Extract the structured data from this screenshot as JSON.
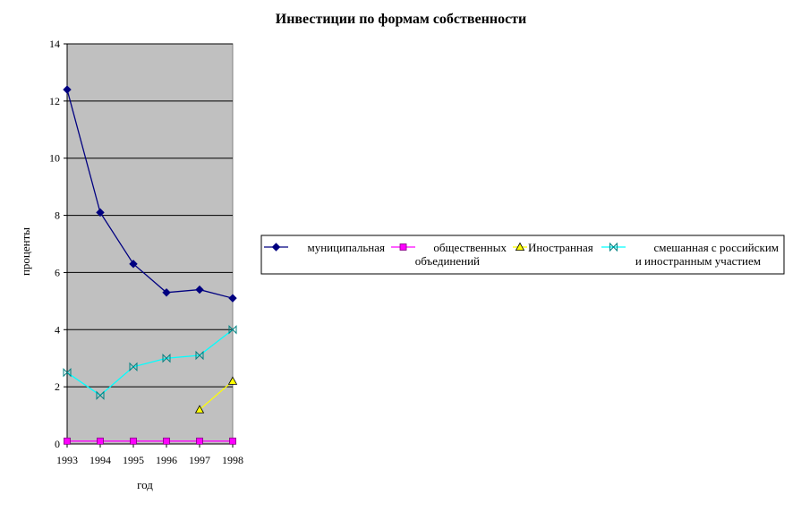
{
  "chart_data": {
    "type": "line",
    "title": "Инвестиции по формам собственности",
    "xlabel": "год",
    "ylabel": "проценты",
    "x": [
      "1993",
      "1994",
      "1995",
      "1996",
      "1997",
      "1998"
    ],
    "ylim": [
      0,
      14
    ],
    "yticks": [
      "0",
      "2",
      "4",
      "6",
      "8",
      "10",
      "12",
      "14"
    ],
    "grid": true,
    "legend_position": "right",
    "series": [
      {
        "name": "муниципальная",
        "color": "#000080",
        "marker": "diamond",
        "values": [
          12.4,
          8.1,
          6.3,
          5.3,
          5.4,
          5.1
        ]
      },
      {
        "name": "общественных объединений",
        "color": "#ff00ff",
        "marker": "square",
        "values": [
          0.1,
          0.1,
          0.1,
          0.1,
          0.1,
          0.1
        ]
      },
      {
        "name": "Иностранная",
        "color": "#ffff00",
        "marker": "triangle",
        "values": [
          null,
          null,
          null,
          null,
          1.2,
          2.2
        ]
      },
      {
        "name": "смешанная с российским и иностранным участием",
        "color": "#00ffff",
        "marker": "bowtie",
        "values": [
          2.5,
          1.7,
          2.7,
          3.0,
          3.1,
          4.0
        ]
      }
    ]
  }
}
